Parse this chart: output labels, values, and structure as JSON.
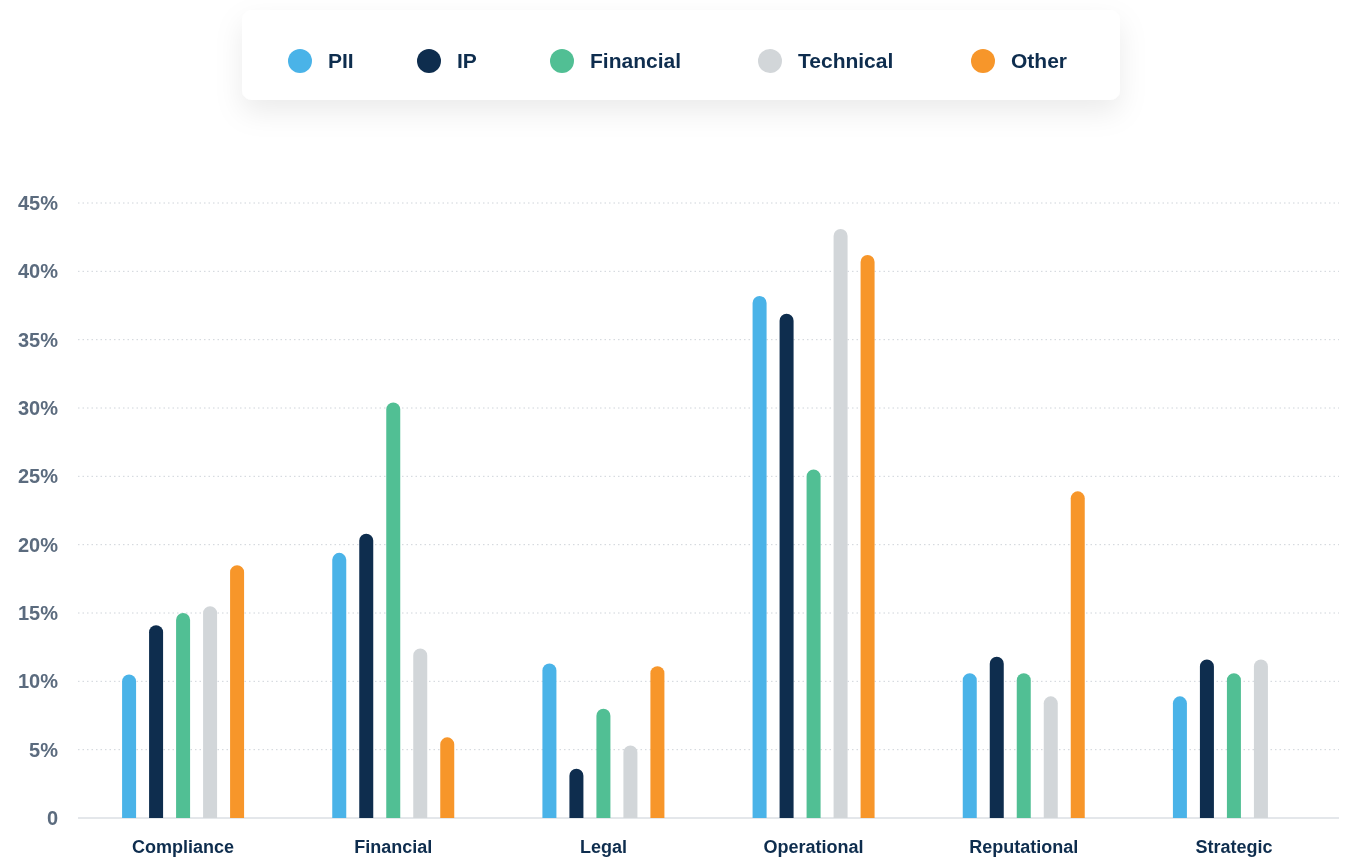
{
  "chart_data": {
    "type": "bar",
    "categories": [
      "Compliance",
      "Financial",
      "Legal",
      "Operational",
      "Reputational",
      "Strategic"
    ],
    "series": [
      {
        "name": "PII",
        "color": "#4ab3e8",
        "values": [
          10.5,
          19.4,
          11.3,
          38.2,
          10.6,
          8.9
        ]
      },
      {
        "name": "IP",
        "color": "#0e2d4e",
        "values": [
          14.1,
          20.8,
          3.6,
          36.9,
          11.8,
          11.6
        ]
      },
      {
        "name": "Financial",
        "color": "#51bf94",
        "values": [
          15.0,
          30.4,
          8.0,
          25.5,
          10.6,
          10.6
        ]
      },
      {
        "name": "Technical",
        "color": "#d2d6d9",
        "values": [
          15.5,
          12.4,
          5.3,
          43.1,
          8.9,
          11.6
        ]
      },
      {
        "name": "Other",
        "color": "#f7962a",
        "values": [
          18.5,
          5.9,
          11.1,
          41.2,
          23.9,
          null
        ]
      }
    ],
    "ylim": [
      0,
      45
    ],
    "yticks": [
      0,
      {
        "value": 5,
        "label": "5%"
      },
      {
        "value": 10,
        "label": "10%"
      },
      {
        "value": 15,
        "label": "15%"
      },
      {
        "value": 20,
        "label": "20%"
      },
      {
        "value": 25,
        "label": "25%"
      },
      {
        "value": 30,
        "label": "30%"
      },
      {
        "value": 35,
        "label": "35%"
      },
      {
        "value": 40,
        "label": "40%"
      },
      {
        "value": 45,
        "label": "45%"
      }
    ],
    "grid": "y",
    "legend": "top"
  }
}
